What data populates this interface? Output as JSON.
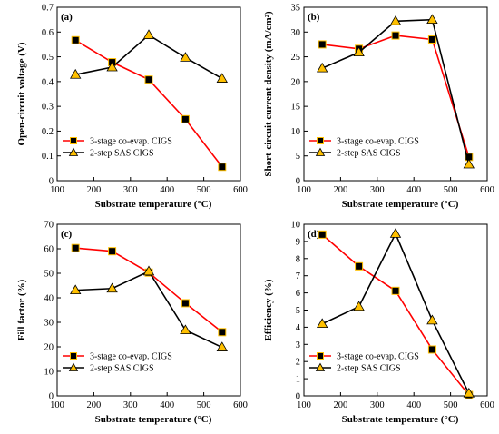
{
  "chart_data": [
    {
      "type": "line",
      "panel": "(a)",
      "xlabel": "Substrate temperature (°C)",
      "ylabel": "Open-circuit voltage (V)",
      "xlim": [
        100,
        600
      ],
      "xticks": [
        100,
        200,
        300,
        400,
        500,
        600
      ],
      "ylim": [
        0,
        0.7
      ],
      "yticks": [
        0,
        0.1,
        0.2,
        0.3,
        0.4,
        0.5,
        0.6,
        0.7
      ],
      "legend": "bottom-left",
      "series": [
        {
          "name": "3-stage co-evap. CIGS",
          "color": "#ff0000",
          "marker": "square",
          "marker_color": "#000000",
          "x": [
            150,
            250,
            350,
            450,
            550
          ],
          "y": [
            0.567,
            0.478,
            0.408,
            0.248,
            0.056
          ]
        },
        {
          "name": "2-step SAS CIGS",
          "color": "#000000",
          "marker": "triangle",
          "marker_color": "#ffc000",
          "x": [
            150,
            250,
            350,
            450,
            550
          ],
          "y": [
            0.428,
            0.458,
            0.588,
            0.497,
            0.412
          ]
        }
      ]
    },
    {
      "type": "line",
      "panel": "(b)",
      "xlabel": "Substrate temperature (°C)",
      "ylabel": "Short-circuit current density (mA/cm²)",
      "xlim": [
        100,
        600
      ],
      "xticks": [
        100,
        200,
        300,
        400,
        500,
        600
      ],
      "ylim": [
        0,
        35
      ],
      "yticks": [
        0,
        5,
        10,
        15,
        20,
        25,
        30,
        35
      ],
      "legend": "bottom-left",
      "series": [
        {
          "name": "3-stage co-evap. CIGS",
          "color": "#ff0000",
          "marker": "square",
          "marker_color": "#000000",
          "x": [
            150,
            250,
            350,
            450,
            550
          ],
          "y": [
            27.5,
            26.6,
            29.3,
            28.5,
            4.8
          ]
        },
        {
          "name": "2-step SAS CIGS",
          "color": "#000000",
          "marker": "triangle",
          "marker_color": "#ffc000",
          "x": [
            150,
            250,
            350,
            450,
            550
          ],
          "y": [
            22.7,
            25.9,
            32.2,
            32.5,
            3.3
          ]
        }
      ]
    },
    {
      "type": "line",
      "panel": "(c)",
      "xlabel": "Substrate temperature (°C)",
      "ylabel": "Fill factor (%)",
      "xlim": [
        100,
        600
      ],
      "xticks": [
        100,
        200,
        300,
        400,
        500,
        600
      ],
      "ylim": [
        0,
        70
      ],
      "yticks": [
        0,
        10,
        20,
        30,
        40,
        50,
        60,
        70
      ],
      "legend": "bottom-left",
      "series": [
        {
          "name": "3-stage co-evap. CIGS",
          "color": "#ff0000",
          "marker": "square",
          "marker_color": "#000000",
          "x": [
            150,
            250,
            350,
            450,
            550
          ],
          "y": [
            60.3,
            59.0,
            50.3,
            37.8,
            26.0
          ]
        },
        {
          "name": "2-step SAS CIGS",
          "color": "#000000",
          "marker": "triangle",
          "marker_color": "#ffc000",
          "x": [
            150,
            250,
            350,
            450,
            550
          ],
          "y": [
            43.1,
            43.8,
            50.8,
            26.8,
            19.8
          ]
        }
      ]
    },
    {
      "type": "line",
      "panel": "(d)",
      "xlabel": "Substrate temperature (°C)",
      "ylabel": "Efficiency (%)",
      "xlim": [
        100,
        600
      ],
      "xticks": [
        100,
        200,
        300,
        400,
        500,
        600
      ],
      "ylim": [
        0,
        10
      ],
      "yticks": [
        0,
        1,
        2,
        3,
        4,
        5,
        6,
        7,
        8,
        9,
        10
      ],
      "legend": "bottom-left",
      "series": [
        {
          "name": "3-stage co-evap. CIGS",
          "color": "#ff0000",
          "marker": "square",
          "marker_color": "#000000",
          "x": [
            150,
            250,
            350,
            450,
            550
          ],
          "y": [
            9.4,
            7.55,
            6.12,
            2.7,
            0.05
          ]
        },
        {
          "name": "2-step SAS CIGS",
          "color": "#000000",
          "marker": "triangle",
          "marker_color": "#ffc000",
          "x": [
            150,
            250,
            350,
            450,
            550
          ],
          "y": [
            4.2,
            5.2,
            9.45,
            4.4,
            0.15
          ]
        }
      ]
    }
  ]
}
